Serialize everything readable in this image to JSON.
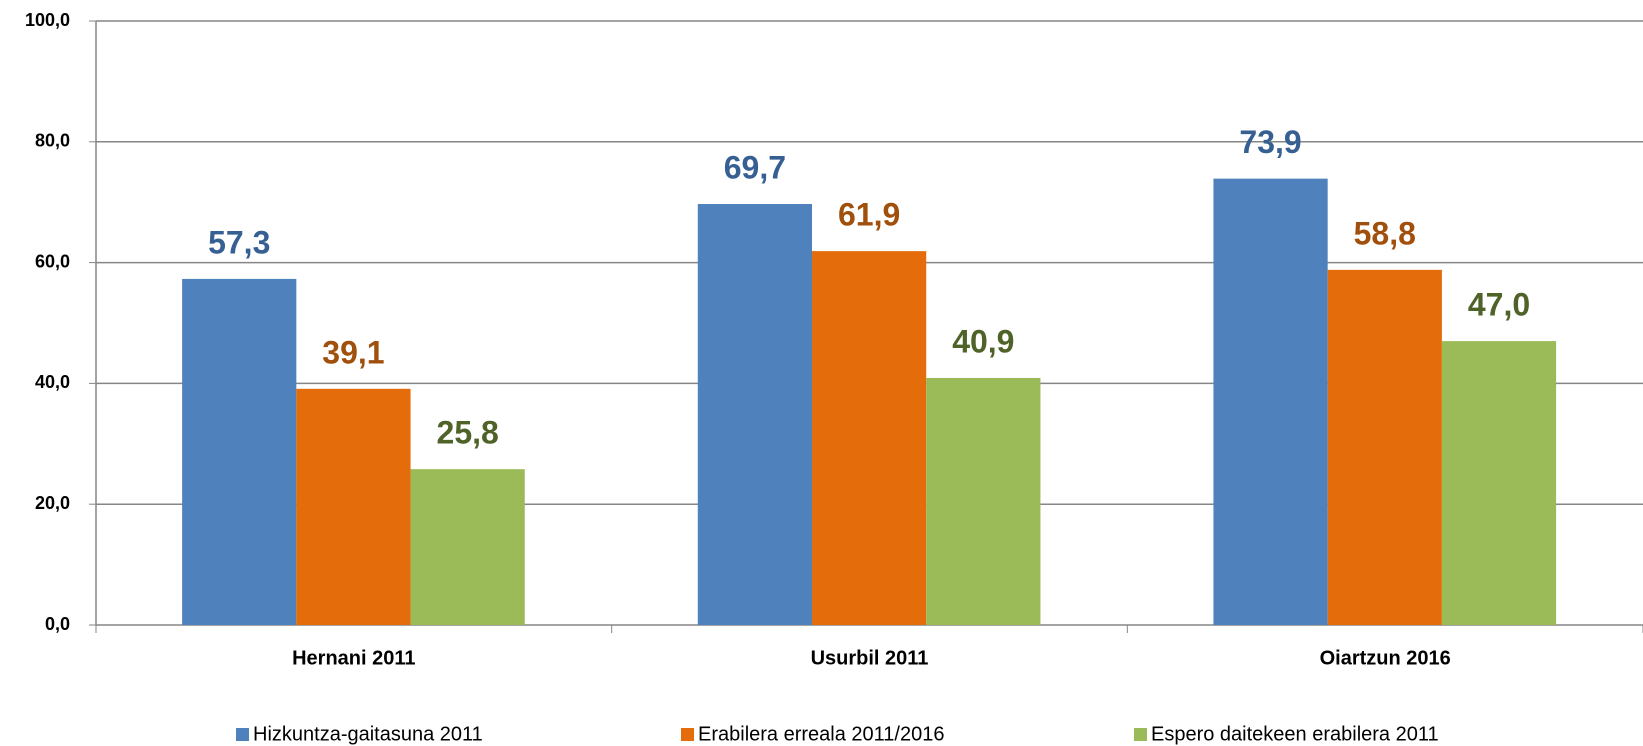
{
  "chart_data": {
    "type": "bar",
    "categories": [
      "Hernani 2011",
      "Usurbil 2011",
      "Oiartzun 2016"
    ],
    "series": [
      {
        "name": "Hizkuntza-gaitasuna 2011",
        "color": "#4f81bd",
        "label_color": "#376092",
        "values": [
          57.3,
          69.7,
          73.9
        ],
        "value_labels": [
          "57,3",
          "69,7",
          "73,9"
        ]
      },
      {
        "name": "Erabilera erreala 2011/2016",
        "color": "#e46c0a",
        "label_color": "#a0500c",
        "values": [
          39.1,
          61.9,
          58.8
        ],
        "value_labels": [
          "39,1",
          "61,9",
          "58,8"
        ]
      },
      {
        "name": "Espero daitekeen erabilera 2011",
        "color": "#9bbb59",
        "label_color": "#4f6228",
        "values": [
          25.8,
          40.9,
          47.0
        ],
        "value_labels": [
          "25,8",
          "40,9",
          "47,0"
        ]
      }
    ],
    "ylim": [
      0,
      100
    ],
    "yticks": [
      {
        "value": 0,
        "label": "0,0"
      },
      {
        "value": 20,
        "label": "20,0"
      },
      {
        "value": 40,
        "label": "40,0"
      },
      {
        "value": 60,
        "label": "60,0"
      },
      {
        "value": 80,
        "label": "80,0"
      },
      {
        "value": 100,
        "label": "100,0"
      }
    ],
    "grid": true,
    "legend": "bottom"
  }
}
